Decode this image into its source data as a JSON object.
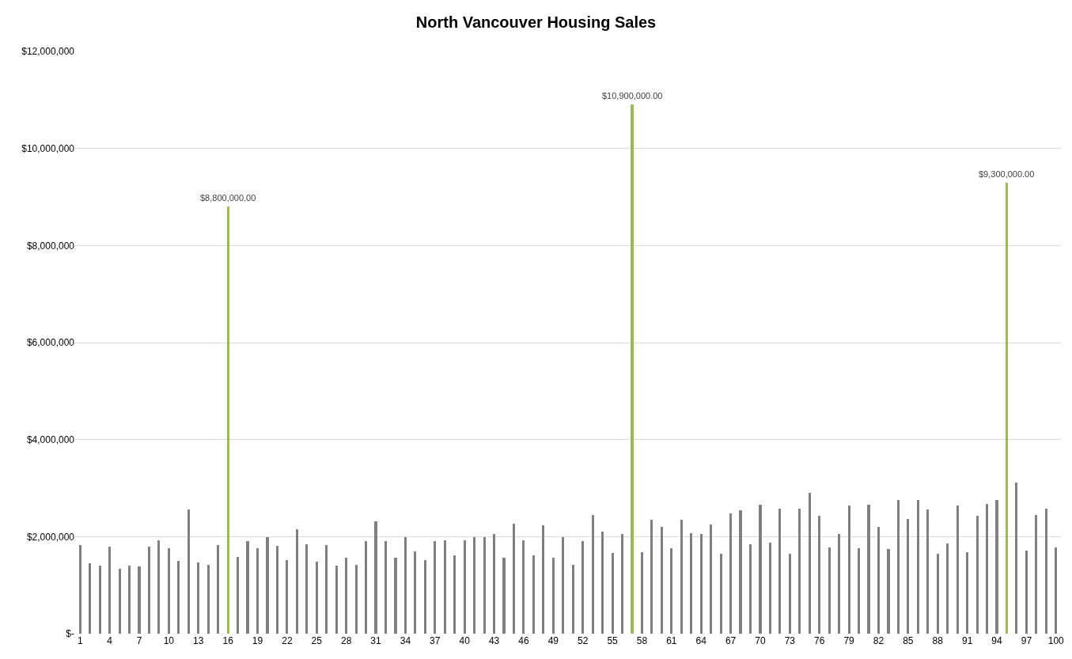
{
  "chart_data": {
    "type": "bar",
    "title": "North Vancouver Housing Sales",
    "categories": [
      "1",
      null,
      null,
      "4",
      null,
      null,
      "7",
      null,
      null,
      "10",
      null,
      null,
      "13",
      null,
      null,
      "16",
      null,
      null,
      "19",
      null,
      null,
      "22",
      null,
      null,
      "25",
      null,
      null,
      "28",
      null,
      null,
      "31",
      null,
      null,
      "34",
      null,
      null,
      "37",
      null,
      null,
      "40",
      null,
      null,
      "43",
      null,
      null,
      "46",
      null,
      null,
      "49",
      null,
      null,
      "52",
      null,
      null,
      "55",
      null,
      null,
      "58",
      null,
      null,
      "61",
      null,
      null,
      "64",
      null,
      null,
      "67",
      null,
      null,
      "70",
      null,
      null,
      "73",
      null,
      null,
      "76",
      null,
      null,
      "79",
      null,
      null,
      "82",
      null,
      null,
      "85",
      null,
      null,
      "88",
      null,
      null,
      "91",
      null,
      null,
      "94",
      null,
      null,
      "97",
      null,
      null,
      "100"
    ],
    "values": [
      1820000,
      1450000,
      1410000,
      1790000,
      1330000,
      1400000,
      1380000,
      1790000,
      1930000,
      1760000,
      1500000,
      2560000,
      1460000,
      1420000,
      1820000,
      8800000,
      1580000,
      1900000,
      1760000,
      1990000,
      1810000,
      1510000,
      2160000,
      1850000,
      1480000,
      1820000,
      1400000,
      1560000,
      1420000,
      1900000,
      2310000,
      1900000,
      1560000,
      1990000,
      1690000,
      1510000,
      1900000,
      1920000,
      1620000,
      1920000,
      1990000,
      1990000,
      2050000,
      1560000,
      2260000,
      1920000,
      1620000,
      2240000,
      1570000,
      1990000,
      1420000,
      1900000,
      2450000,
      2100000,
      1670000,
      2050000,
      10900000,
      1680000,
      2350000,
      2200000,
      1760000,
      2350000,
      2070000,
      2050000,
      2250000,
      1650000,
      2480000,
      2540000,
      1840000,
      2660000,
      1870000,
      2580000,
      1650000,
      2580000,
      2910000,
      2430000,
      1780000,
      2050000,
      2640000,
      1760000,
      2660000,
      2200000,
      1750000,
      2760000,
      2370000,
      2760000,
      2560000,
      1640000,
      1860000,
      2640000,
      1680000,
      2430000,
      2670000,
      2760000,
      9300000,
      3110000,
      1710000,
      2450000,
      2580000,
      1780000
    ],
    "colors": [
      "#808080",
      "#808080",
      "#808080",
      "#808080",
      "#808080",
      "#808080",
      "#808080",
      "#808080",
      "#808080",
      "#808080",
      "#808080",
      "#808080",
      "#808080",
      "#808080",
      "#808080",
      "#9bbb59",
      "#808080",
      "#808080",
      "#808080",
      "#808080",
      "#808080",
      "#808080",
      "#808080",
      "#808080",
      "#808080",
      "#808080",
      "#808080",
      "#808080",
      "#808080",
      "#808080",
      "#808080",
      "#808080",
      "#808080",
      "#808080",
      "#808080",
      "#808080",
      "#808080",
      "#808080",
      "#808080",
      "#808080",
      "#808080",
      "#808080",
      "#808080",
      "#808080",
      "#808080",
      "#808080",
      "#808080",
      "#808080",
      "#808080",
      "#808080",
      "#808080",
      "#808080",
      "#808080",
      "#808080",
      "#808080",
      "#808080",
      "#9bbb59",
      "#808080",
      "#808080",
      "#808080",
      "#808080",
      "#808080",
      "#808080",
      "#808080",
      "#808080",
      "#808080",
      "#808080",
      "#808080",
      "#808080",
      "#808080",
      "#808080",
      "#808080",
      "#808080",
      "#808080",
      "#808080",
      "#808080",
      "#808080",
      "#808080",
      "#808080",
      "#808080",
      "#808080",
      "#808080",
      "#808080",
      "#808080",
      "#808080",
      "#808080",
      "#808080",
      "#808080",
      "#808080",
      "#808080",
      "#808080",
      "#808080",
      "#808080",
      "#808080",
      "#9bbb59",
      "#808080",
      "#808080",
      "#808080",
      "#808080",
      "#808080"
    ],
    "value_labels": [
      null,
      null,
      null,
      null,
      null,
      null,
      null,
      null,
      null,
      null,
      null,
      null,
      null,
      null,
      null,
      "$8,800,000.00",
      null,
      null,
      null,
      null,
      null,
      null,
      null,
      null,
      null,
      null,
      null,
      null,
      null,
      null,
      null,
      null,
      null,
      null,
      null,
      null,
      null,
      null,
      null,
      null,
      null,
      null,
      null,
      null,
      null,
      null,
      null,
      null,
      null,
      null,
      null,
      null,
      null,
      null,
      null,
      null,
      "$10,900,000.00",
      null,
      null,
      null,
      null,
      null,
      null,
      null,
      null,
      null,
      null,
      null,
      null,
      null,
      null,
      null,
      null,
      null,
      null,
      null,
      null,
      null,
      null,
      null,
      null,
      null,
      null,
      null,
      null,
      null,
      null,
      null,
      null,
      null,
      null,
      null,
      null,
      null,
      "$9,300,000.00",
      null,
      null,
      null,
      null,
      null
    ],
    "ylim": [
      0,
      12000000
    ],
    "yticks": [
      {
        "value": 0,
        "label": "$-"
      },
      {
        "value": 2000000,
        "label": "$2,000,000"
      },
      {
        "value": 4000000,
        "label": "$4,000,000"
      },
      {
        "value": 6000000,
        "label": "$6,000,000"
      },
      {
        "value": 8000000,
        "label": "$8,000,000"
      },
      {
        "value": 10000000,
        "label": "$10,000,000"
      },
      {
        "value": 12000000,
        "label": "$12,000,000"
      }
    ],
    "grid": "y"
  }
}
